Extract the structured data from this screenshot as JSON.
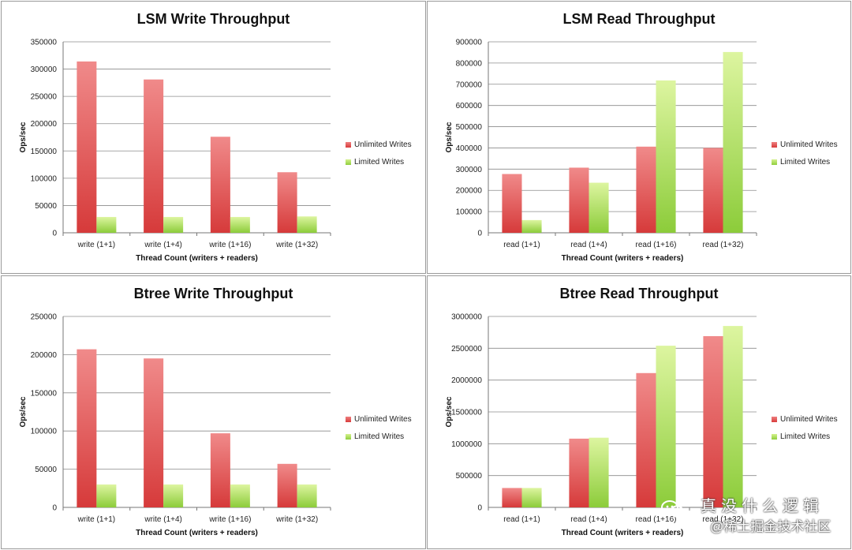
{
  "colors": {
    "unlimited_top": "#f08a8a",
    "unlimited_bottom": "#d63a3a",
    "limited_top": "#ddf5a0",
    "limited_bottom": "#8ccc3a",
    "gridline": "#8c8c8c",
    "panel_border": "#9a9a9a"
  },
  "watermark": {
    "line1": "真没什么逻辑",
    "line2": "@稀土掘金技术社区",
    "icon": "wechat-icon"
  },
  "chart_data": [
    {
      "type": "bar",
      "title": "LSM Write Throughput",
      "xlabel": "Thread Count (writers + readers)",
      "ylabel": "Ops/sec",
      "ylim": [
        0,
        350000
      ],
      "yticks": [
        "0",
        "50000",
        "100000",
        "150000",
        "200000",
        "250000",
        "300000",
        "350000"
      ],
      "categories": [
        "write (1+1)",
        "write (1+4)",
        "write (1+16)",
        "write (1+32)"
      ],
      "series": [
        {
          "name": "Unlimited Writes",
          "values": [
            314000,
            281000,
            176000,
            111000
          ]
        },
        {
          "name": "Limited Writes",
          "values": [
            29000,
            29000,
            29000,
            30000
          ]
        }
      ],
      "grid": true,
      "legend": "right"
    },
    {
      "type": "bar",
      "title": "LSM Read Throughput",
      "xlabel": "Thread Count (writers + readers)",
      "ylabel": "Ops/sec",
      "ylim": [
        0,
        900000
      ],
      "yticks": [
        "0",
        "100000",
        "200000",
        "300000",
        "400000",
        "500000",
        "600000",
        "700000",
        "800000",
        "900000"
      ],
      "categories": [
        "read (1+1)",
        "read (1+4)",
        "read (1+16)",
        "read (1+32)"
      ],
      "series": [
        {
          "name": "Unlimited Writes",
          "values": [
            277000,
            307000,
            406000,
            400000
          ]
        },
        {
          "name": "Limited Writes",
          "values": [
            60000,
            236000,
            718000,
            852000
          ]
        }
      ],
      "grid": true,
      "legend": "right"
    },
    {
      "type": "bar",
      "title": "Btree Write Throughput",
      "xlabel": "Thread Count (writers + readers)",
      "ylabel": "Ops/sec",
      "ylim": [
        0,
        250000
      ],
      "yticks": [
        "0",
        "50000",
        "100000",
        "150000",
        "200000",
        "250000"
      ],
      "categories": [
        "write (1+1)",
        "write (1+4)",
        "write (1+16)",
        "write (1+32)"
      ],
      "series": [
        {
          "name": "Unlimited Writes",
          "values": [
            207000,
            195000,
            97000,
            57000
          ]
        },
        {
          "name": "Limited Writes",
          "values": [
            30000,
            30000,
            30000,
            30000
          ]
        }
      ],
      "grid": true,
      "legend": "right"
    },
    {
      "type": "bar",
      "title": "Btree Read Throughput",
      "xlabel": "Thread Count (writers + readers)",
      "ylabel": "Ops/sec",
      "ylim": [
        0,
        3000000
      ],
      "yticks": [
        "0",
        "500000",
        "1000000",
        "1500000",
        "2000000",
        "2500000",
        "3000000"
      ],
      "categories": [
        "read (1+1)",
        "read (1+4)",
        "read (1+16)",
        "read (1+32)"
      ],
      "series": [
        {
          "name": "Unlimited Writes",
          "values": [
            305000,
            1080000,
            2110000,
            2690000
          ]
        },
        {
          "name": "Limited Writes",
          "values": [
            305000,
            1095000,
            2540000,
            2850000
          ]
        }
      ],
      "grid": true,
      "legend": "right"
    }
  ]
}
